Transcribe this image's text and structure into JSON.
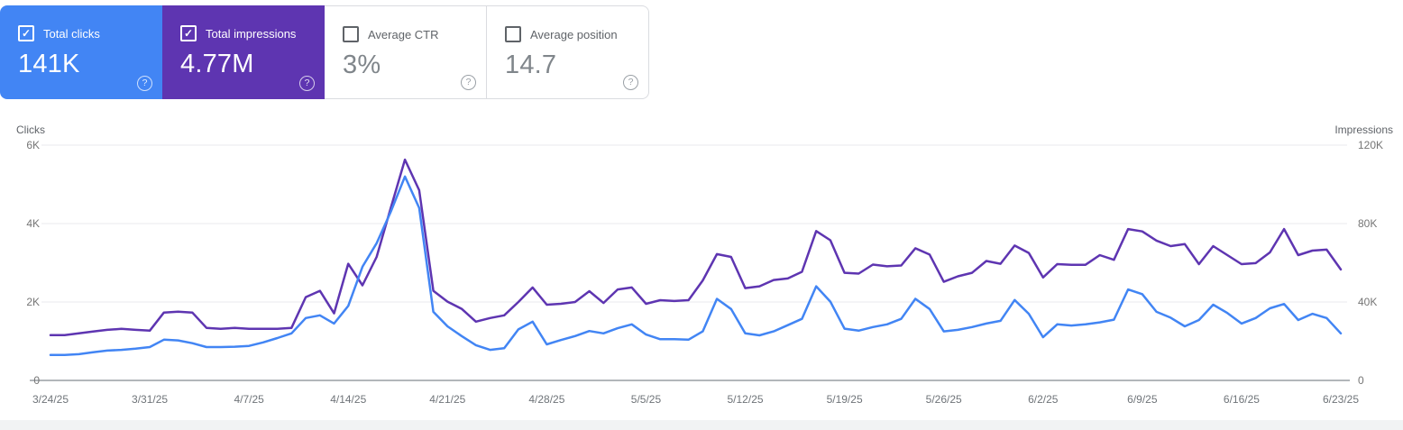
{
  "cards": [
    {
      "label": "Total clicks",
      "value": "141K",
      "checked": true,
      "color": "#4285f4"
    },
    {
      "label": "Total impressions",
      "value": "4.77M",
      "checked": true,
      "color": "#5e35b1"
    },
    {
      "label": "Average CTR",
      "value": "3%",
      "checked": false,
      "color": "#ffffff"
    },
    {
      "label": "Average position",
      "value": "14.7",
      "checked": false,
      "color": "#ffffff"
    }
  ],
  "help_icon_glyph": "?",
  "check_glyph": "✓",
  "chart_data": {
    "type": "line",
    "frequency": "daily",
    "x_tick_labels": [
      "3/24/25",
      "3/31/25",
      "4/7/25",
      "4/14/25",
      "4/21/25",
      "4/28/25",
      "5/5/25",
      "5/12/25",
      "5/19/25",
      "5/26/25",
      "6/2/25",
      "6/9/25",
      "6/16/25",
      "6/23/25"
    ],
    "x_tick_days": [
      0,
      7,
      14,
      21,
      28,
      35,
      42,
      49,
      56,
      63,
      70,
      77,
      84,
      91
    ],
    "left_axis": {
      "title": "Clicks",
      "tick_labels": [
        "0",
        "2K",
        "4K",
        "6K"
      ],
      "tick_values": [
        0,
        2000,
        4000,
        6000
      ],
      "max": 6000
    },
    "right_axis": {
      "title": "Impressions",
      "tick_labels": [
        "0",
        "40K",
        "80K",
        "120K"
      ],
      "tick_values": [
        0,
        40000,
        80000,
        120000
      ],
      "max": 120000
    },
    "grid": "horizontal",
    "legend": "none",
    "series": [
      {
        "name": "Clicks",
        "axis": "left",
        "color": "#4285f4",
        "values": [
          650,
          650,
          670,
          720,
          760,
          780,
          810,
          850,
          1040,
          1020,
          950,
          850,
          850,
          860,
          880,
          970,
          1080,
          1200,
          1590,
          1660,
          1450,
          1900,
          2900,
          3500,
          4300,
          5200,
          4400,
          1750,
          1380,
          1130,
          900,
          780,
          820,
          1300,
          1500,
          920,
          1030,
          1130,
          1260,
          1200,
          1330,
          1430,
          1170,
          1050,
          1050,
          1040,
          1250,
          2080,
          1820,
          1200,
          1150,
          1250,
          1410,
          1570,
          2400,
          2010,
          1320,
          1270,
          1360,
          1430,
          1570,
          2080,
          1820,
          1250,
          1290,
          1360,
          1450,
          1520,
          2050,
          1700,
          1100,
          1430,
          1400,
          1430,
          1480,
          1550,
          2320,
          2200,
          1750,
          1600,
          1380,
          1540,
          1930,
          1720,
          1450,
          1590,
          1840,
          1950,
          1540,
          1700,
          1590,
          1200
        ]
      },
      {
        "name": "Impressions",
        "axis": "right",
        "color": "#5e35b1",
        "values": [
          23100,
          23100,
          24000,
          24900,
          25800,
          26300,
          25800,
          25400,
          34600,
          35100,
          34600,
          26800,
          26300,
          26800,
          26300,
          26300,
          26300,
          26800,
          42500,
          45700,
          34200,
          59500,
          48500,
          63000,
          88000,
          112600,
          97000,
          45700,
          40200,
          36500,
          30000,
          31800,
          33200,
          40000,
          47400,
          38600,
          39100,
          40000,
          45500,
          39500,
          46400,
          47400,
          39100,
          40900,
          40500,
          40900,
          51000,
          64400,
          63000,
          47100,
          48000,
          51200,
          52000,
          55400,
          76200,
          71500,
          54900,
          54500,
          59100,
          58200,
          58600,
          67400,
          64200,
          50300,
          53100,
          54900,
          60900,
          59500,
          68800,
          65000,
          52500,
          59300,
          59000,
          59000,
          63900,
          61500,
          77200,
          76000,
          71300,
          68500,
          69500,
          59300,
          68500,
          63900,
          59300,
          59800,
          65300,
          77200,
          63900,
          66200,
          66700,
          56600
        ]
      }
    ]
  },
  "style": {
    "gridline_color": "#e8eaed",
    "axis_line_color": "#b2b6ba",
    "tick_label_color": "#757575"
  }
}
